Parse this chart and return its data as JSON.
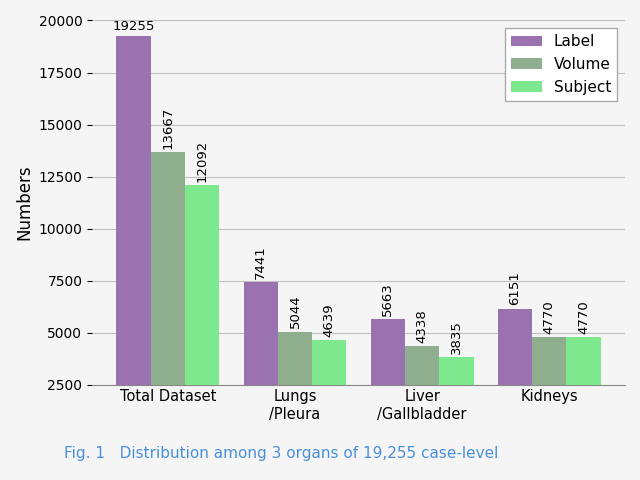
{
  "categories": [
    "Total Dataset",
    "Lungs\n/Pleura",
    "Liver\n/Gallbladder",
    "Kidneys"
  ],
  "label_values": [
    19255,
    7441,
    5663,
    6151
  ],
  "volume_values": [
    13667,
    5044,
    4338,
    4770
  ],
  "subject_values": [
    12092,
    4639,
    3835,
    4770
  ],
  "label_color": "#9B72B0",
  "volume_color": "#8EAE8E",
  "subject_color": "#7EE88E",
  "legend_labels": [
    "Label",
    "Volume",
    "Subject"
  ],
  "ylabel": "Numbers",
  "ylim": [
    2500,
    20000
  ],
  "yticks": [
    2500,
    5000,
    7500,
    10000,
    12500,
    15000,
    17500,
    20000
  ],
  "title": "",
  "bar_width": 0.27,
  "annotation_fontsize": 9.5,
  "background_color": "#f5f5f5",
  "caption": "Fig. 1   Distribution among 3 organs of 19,255 case-level",
  "caption_color": "#4a90d9",
  "caption_fontsize": 11
}
